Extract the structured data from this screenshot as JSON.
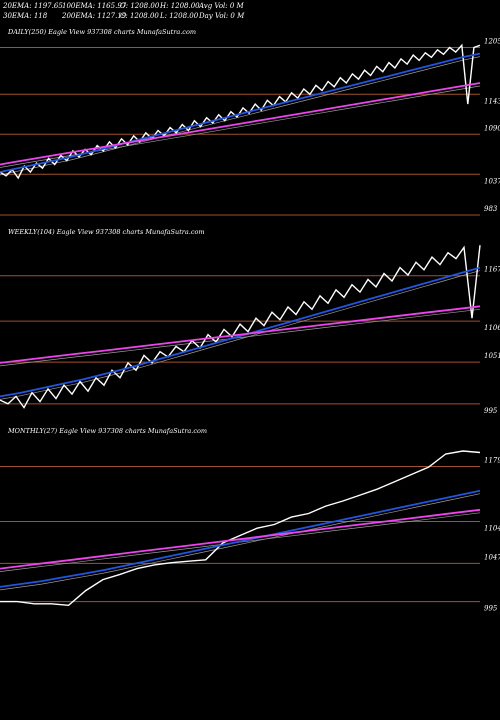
{
  "header": {
    "ema20": "20EMA: 1197.65",
    "ema100": "100EMA: 1165.97",
    "open": "O: 1208.00",
    "high": "H: 1208.00",
    "avgvol": "Avg Vol: 0  M",
    "ema30": "30EMA: 118",
    "ema200": "200EMA: 1127.19",
    "close": "C: 1208.00",
    "low": "L: 1208.00",
    "dayvol": "Day Vol: 0  M"
  },
  "colors": {
    "background": "#000000",
    "price": "#ffffff",
    "ema_blue": "#2255dd",
    "ema_magenta": "#ee44ee",
    "level_line": "#a0522d"
  },
  "chart_data": [
    {
      "type": "line",
      "title": "DAILY(250) Eagle  View  937308 charts MunafaSutra.com",
      "y_levels": [
        1205,
        1143,
        1090,
        1037,
        983
      ],
      "ylim": [
        983,
        1215
      ],
      "series": [
        {
          "values": [
            1040,
            1035,
            1043,
            1032,
            1048,
            1040,
            1052,
            1045,
            1058,
            1050,
            1062,
            1055,
            1068,
            1060,
            1070,
            1063,
            1075,
            1068,
            1080,
            1072,
            1084,
            1076,
            1088,
            1080,
            1092,
            1084,
            1095,
            1088,
            1099,
            1092,
            1103,
            1095,
            1108,
            1100,
            1112,
            1105,
            1116,
            1108,
            1120,
            1113,
            1125,
            1118,
            1130,
            1122,
            1135,
            1128,
            1140,
            1133,
            1145,
            1138,
            1150,
            1143,
            1155,
            1148,
            1160,
            1153,
            1165,
            1158,
            1170,
            1163,
            1175,
            1168,
            1180,
            1173,
            1185,
            1178,
            1190,
            1183,
            1195,
            1188,
            1198,
            1192,
            1202,
            1196,
            1205,
            1199,
            1208,
            1130,
            1205,
            1208
          ]
        },
        {
          "values": [
            1040,
            1045,
            1050,
            1055,
            1060,
            1066,
            1072,
            1078,
            1084,
            1090,
            1096,
            1102,
            1108,
            1114,
            1120,
            1126,
            1132,
            1138,
            1144,
            1150,
            1156,
            1162,
            1168,
            1174,
            1180,
            1186,
            1192,
            1197
          ]
        },
        {
          "values": [
            1050,
            1054,
            1058,
            1062,
            1066,
            1070,
            1074,
            1078,
            1082,
            1086,
            1090,
            1094,
            1098,
            1102,
            1106,
            1110,
            1114,
            1118,
            1122,
            1126,
            1130,
            1134,
            1138,
            1142,
            1146,
            1150,
            1154,
            1158
          ]
        }
      ]
    },
    {
      "type": "line",
      "title": "WEEKLY(104) Eagle  View  937308 charts MunafaSutra.com",
      "y_levels": [
        1167,
        1106,
        1051,
        995
      ],
      "ylim": [
        980,
        1215
      ],
      "series": [
        {
          "values": [
            1000,
            995,
            1005,
            990,
            1010,
            998,
            1015,
            1002,
            1020,
            1008,
            1025,
            1012,
            1030,
            1020,
            1040,
            1030,
            1050,
            1040,
            1060,
            1050,
            1065,
            1058,
            1072,
            1065,
            1080,
            1070,
            1088,
            1078,
            1095,
            1085,
            1102,
            1092,
            1110,
            1100,
            1118,
            1108,
            1125,
            1115,
            1132,
            1122,
            1140,
            1130,
            1148,
            1138,
            1155,
            1145,
            1162,
            1152,
            1170,
            1160,
            1178,
            1168,
            1185,
            1175,
            1192,
            1182,
            1198,
            1190,
            1205,
            1110,
            1208
          ]
        },
        {
          "values": [
            1005,
            1010,
            1016,
            1022,
            1028,
            1035,
            1042,
            1050,
            1058,
            1066,
            1074,
            1082,
            1090,
            1098,
            1106,
            1114,
            1122,
            1130,
            1138,
            1146,
            1154,
            1162,
            1170,
            1178
          ]
        },
        {
          "values": [
            1050,
            1054,
            1058,
            1062,
            1066,
            1070,
            1074,
            1078,
            1082,
            1086,
            1090,
            1094,
            1098,
            1102,
            1106,
            1110,
            1114,
            1118,
            1122,
            1126
          ]
        }
      ]
    },
    {
      "type": "line",
      "title": "MONTHLY(27) Eagle  View  937308 charts MunafaSutra.com",
      "y_levels": [
        1179,
        1104,
        1047,
        995
      ],
      "ylim": [
        970,
        1215
      ],
      "series": [
        {
          "values": [
            995,
            995,
            992,
            992,
            990,
            1010,
            1025,
            1032,
            1040,
            1045,
            1048,
            1050,
            1052,
            1075,
            1085,
            1095,
            1100,
            1110,
            1115,
            1125,
            1132,
            1140,
            1148,
            1158,
            1168,
            1178,
            1196,
            1200,
            1198
          ]
        },
        {
          "values": [
            1015,
            1019,
            1023,
            1028,
            1033,
            1038,
            1044,
            1050,
            1056,
            1062,
            1068,
            1074,
            1080,
            1086,
            1092,
            1098,
            1104,
            1110,
            1116,
            1122,
            1128,
            1134,
            1140,
            1146
          ]
        },
        {
          "values": [
            1040,
            1044,
            1048,
            1052,
            1056,
            1060,
            1064,
            1068,
            1072,
            1076,
            1080,
            1084,
            1088,
            1092,
            1096,
            1100,
            1104,
            1108,
            1112,
            1116,
            1120
          ]
        }
      ]
    }
  ]
}
